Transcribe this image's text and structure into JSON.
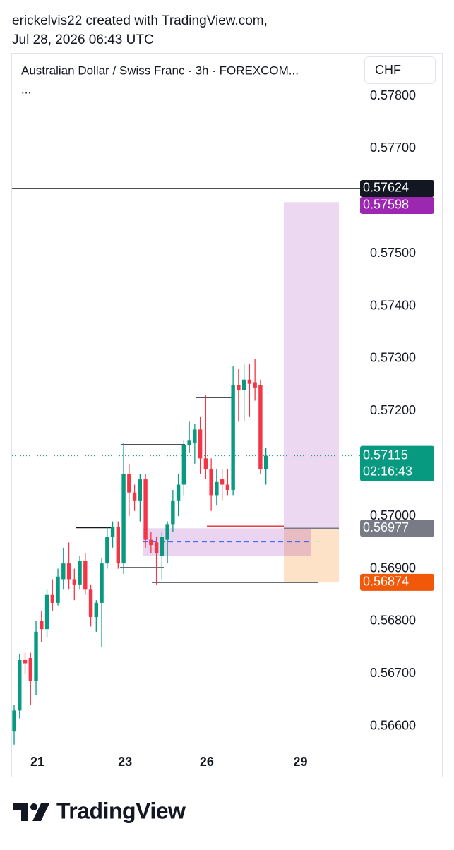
{
  "header": {
    "line1": "erickelvis22 created with TradingView.com,",
    "line2": "Jul 28, 2026 06:43 UTC"
  },
  "chart_data": {
    "type": "candlestick",
    "title": "Australian Dollar / Swiss Franc · 3h · FOREXCOM...",
    "title_more": "...",
    "currency": "CHF",
    "up_color": "#089981",
    "down_color": "#f23645",
    "open": [
      0.5659,
      0.5663,
      0.56726,
      0.5673,
      0.56686,
      0.568,
      0.56785,
      0.5685,
      0.56835,
      0.5688,
      0.5691,
      0.5688,
      0.5687,
      0.56915,
      0.5686,
      0.56808,
      0.56835,
      0.5691,
      0.5696,
      0.5698,
      0.5691,
      0.5708,
      0.57045,
      0.5703,
      0.5707,
      0.56955,
      0.5695,
      0.56925,
      0.56955,
      0.56985,
      0.5703,
      0.5706,
      0.57135,
      0.5714,
      0.57165,
      0.5711,
      0.5709,
      0.5704,
      0.5707,
      0.5706,
      0.5705,
      0.5725,
      0.5724,
      0.5726,
      0.57255,
      0.5725,
      0.5709
    ],
    "high": [
      0.5664,
      0.56738,
      0.5674,
      0.5674,
      0.568,
      0.5682,
      0.5686,
      0.5688,
      0.569,
      0.5694,
      0.5695,
      0.569,
      0.56925,
      0.5693,
      0.5687,
      0.5684,
      0.5692,
      0.5698,
      0.5699,
      0.5699,
      0.5714,
      0.571,
      0.5706,
      0.5708,
      0.5708,
      0.5697,
      0.5696,
      0.5697,
      0.5699,
      0.5705,
      0.5708,
      0.57145,
      0.5718,
      0.57175,
      0.5719,
      0.5723,
      0.5711,
      0.5709,
      0.5709,
      0.5709,
      0.57285,
      0.5728,
      0.5729,
      0.5729,
      0.573,
      0.5726,
      0.5713
    ],
    "low": [
      0.56565,
      0.56615,
      0.567,
      0.5664,
      0.5666,
      0.5676,
      0.5677,
      0.5682,
      0.5683,
      0.5686,
      0.5686,
      0.5684,
      0.5686,
      0.5685,
      0.5679,
      0.5678,
      0.5675,
      0.569,
      0.5694,
      0.569,
      0.5689,
      0.57,
      0.5701,
      0.5699,
      0.5694,
      0.5693,
      0.5687,
      0.5688,
      0.5691,
      0.5697,
      0.57,
      0.5704,
      0.5712,
      0.571,
      0.5708,
      0.5707,
      0.5701,
      0.5702,
      0.5703,
      0.5704,
      0.5704,
      0.5718,
      0.5718,
      0.5719,
      0.5722,
      0.5708,
      0.5706
    ],
    "close": [
      0.5663,
      0.56726,
      0.5672,
      0.56686,
      0.5678,
      0.56785,
      0.5685,
      0.56835,
      0.56885,
      0.5691,
      0.5688,
      0.5687,
      0.56915,
      0.5686,
      0.56808,
      0.56835,
      0.5691,
      0.5696,
      0.5698,
      0.5691,
      0.5708,
      0.57045,
      0.5703,
      0.5707,
      0.56955,
      0.56945,
      0.5693,
      0.5696,
      0.56985,
      0.5703,
      0.5706,
      0.57135,
      0.57145,
      0.57165,
      0.5711,
      0.5709,
      0.5704,
      0.57065,
      0.5706,
      0.5705,
      0.5725,
      0.5724,
      0.5726,
      0.57252,
      0.57245,
      0.5709,
      0.57115
    ],
    "ylim": [
      0.56558,
      0.57882
    ],
    "yticks": [
      {
        "value": 0.578,
        "label": "0.57800"
      },
      {
        "value": 0.577,
        "label": "0.57700"
      },
      {
        "value": 0.575,
        "label": "0.57500"
      },
      {
        "value": 0.574,
        "label": "0.57400"
      },
      {
        "value": 0.573,
        "label": "0.57300"
      },
      {
        "value": 0.572,
        "label": "0.57200"
      },
      {
        "value": 0.57,
        "label": "0.57000"
      },
      {
        "value": 0.569,
        "label": "0.56900"
      },
      {
        "value": 0.568,
        "label": "0.56800"
      },
      {
        "value": 0.567,
        "label": "0.56700"
      },
      {
        "value": 0.566,
        "label": "0.56600"
      }
    ],
    "xlim": [
      -0.39,
      63.2
    ],
    "xticks": [
      {
        "value": 4.26,
        "label": "21"
      },
      {
        "value": 20.26,
        "label": "23"
      },
      {
        "value": 35.2,
        "label": "26"
      },
      {
        "value": 52.3,
        "label": "29"
      }
    ],
    "levels": [
      0.57624,
      0.57136,
      0.57226,
      0.56978,
      0.56902,
      0.56874,
      0.56981
    ],
    "level_colors": [
      "#131722",
      "#131722",
      "#131722",
      "#131722",
      "#131722",
      "#131722",
      "#f23645"
    ],
    "zones": [
      {
        "top": 0.57598,
        "bottom": 0.56977,
        "color": "#9c27b0"
      },
      {
        "top": 0.56977,
        "bottom": 0.56874,
        "color": "#f57c00"
      },
      {
        "top": 0.56977,
        "bottom": 0.56925,
        "color": "#9c27b0"
      }
    ],
    "dashed_level": 0.56951,
    "price_labels": [
      {
        "value": 0.57624,
        "color": "#131722"
      },
      {
        "value": 0.57598,
        "color": "#9c27b0"
      },
      {
        "value": 0.56977,
        "color": "#787b86"
      },
      {
        "value": 0.56874,
        "color": "#f0580a"
      }
    ],
    "last_price": {
      "value": 0.57115,
      "countdown": "02:16:43",
      "color": "#089981"
    }
  },
  "footer": {
    "brand": "TradingView"
  }
}
